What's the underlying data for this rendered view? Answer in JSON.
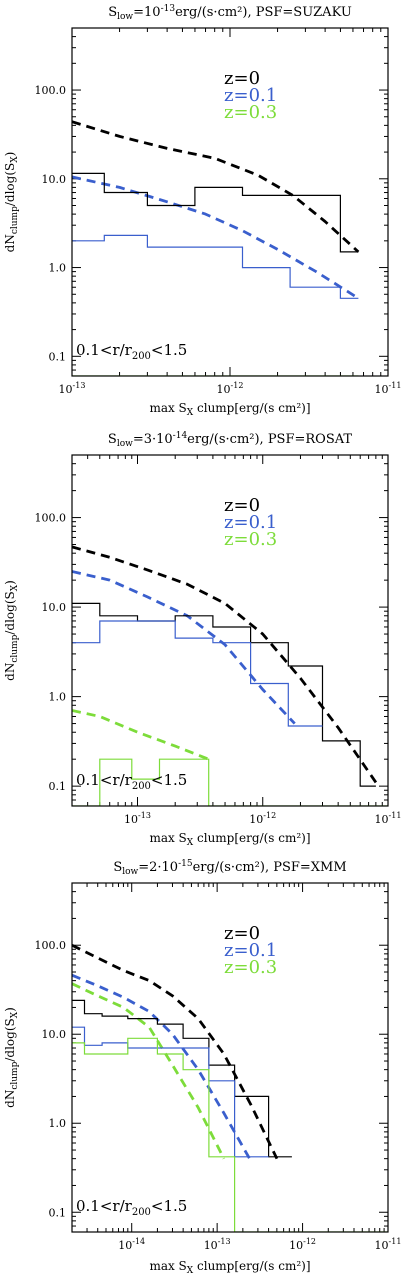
{
  "chart_data": [
    {
      "type": "line",
      "title": "S_low=10^-13 erg/(s·cm²),  PSF=SUZAKU",
      "title_parts": {
        "pre": "S",
        "sub": "low",
        "mid": "=10",
        "sup": "-13",
        "post": "erg/(s·cm²),  PSF=SUZAKU"
      },
      "xlabel": "max S_X clump[erg/(s cm²)]",
      "xlabel_parts": {
        "pre": "max S",
        "sub": "X",
        "post": " clump[erg/(s cm²)]"
      },
      "ylabel": "dN_clump/dlog(S_X)",
      "xscale": "log",
      "yscale": "log",
      "xlim": [
        1e-13,
        1e-11
      ],
      "ylim": [
        0.06,
        500
      ],
      "xtick_labels": [
        {
          "pos": 1e-13,
          "b": "10",
          "e": "-13"
        },
        {
          "pos": 1e-12,
          "b": "10",
          "e": "-12"
        },
        {
          "pos": 1e-11,
          "b": "10",
          "e": "-11"
        }
      ],
      "ytick_labels": [
        {
          "pos": 0.1,
          "label": "0.1"
        },
        {
          "pos": 1,
          "label": "1.0"
        },
        {
          "pos": 10,
          "label": "10.0"
        },
        {
          "pos": 100,
          "label": "100.0"
        }
      ],
      "legend": [
        {
          "label": "z=0",
          "color": "#000000"
        },
        {
          "label": "z=0.1",
          "color": "#3a5fcd"
        },
        {
          "label": "z=0.3",
          "color": "#7ddc3a"
        }
      ],
      "legend_placement": "top-right",
      "annotation": "0.1<r/r_200<1.5",
      "series": [
        {
          "kind": "dashed",
          "color": "#000000",
          "x": [
            1e-13,
            2e-13,
            4e-13,
            8e-13,
            1.5e-12,
            2.5e-12,
            4e-12,
            6.5e-12
          ],
          "y": [
            44,
            30,
            22,
            17,
            11,
            6.5,
            3.3,
            1.5
          ]
        },
        {
          "kind": "dashed",
          "color": "#3a5fcd",
          "x": [
            1e-13,
            2e-13,
            4e-13,
            7e-13,
            1.2e-12,
            2e-12,
            3.5e-12,
            6.5e-12
          ],
          "y": [
            10.5,
            8,
            5.5,
            4,
            2.6,
            1.6,
            0.9,
            0.45
          ]
        },
        {
          "kind": "step",
          "color": "#000000",
          "edges": [
            1e-13,
            1.6e-13,
            3e-13,
            6e-13,
            1.2e-12,
            2.4e-12,
            5e-12,
            6.5e-12
          ],
          "values": [
            11.5,
            7,
            5,
            8,
            6.5,
            6.5,
            1.5
          ]
        },
        {
          "kind": "step",
          "color": "#3a5fcd",
          "edges": [
            1e-13,
            1.6e-13,
            3e-13,
            6e-13,
            1.2e-12,
            2.4e-12,
            5e-12,
            6.5e-12
          ],
          "values": [
            2,
            2.3,
            1.7,
            1.7,
            1.0,
            0.6,
            0.45
          ]
        },
        {
          "kind": "step",
          "color": "#7ddc3a",
          "edges": [
            1e-13,
            6.5e-12
          ],
          "values": [
            0.06
          ]
        }
      ]
    },
    {
      "type": "line",
      "title": "S_low=3·10^-14 erg/(s·cm²),  PSF=ROSAT",
      "title_parts": {
        "pre": "S",
        "sub": "low",
        "mid": "=3·10",
        "sup": "-14",
        "post": "erg/(s·cm²),  PSF=ROSAT"
      },
      "xlabel": "max S_X clump[erg/(s cm²)]",
      "xlabel_parts": {
        "pre": "max S",
        "sub": "X",
        "post": " clump[erg/(s cm²)]"
      },
      "ylabel": "dN_clump/dlog(S_X)",
      "xscale": "log",
      "yscale": "log",
      "xlim": [
        3e-14,
        1e-11
      ],
      "ylim": [
        0.06,
        500
      ],
      "xtick_labels": [
        {
          "pos": 1e-13,
          "b": "10",
          "e": "-13"
        },
        {
          "pos": 1e-12,
          "b": "10",
          "e": "-12"
        },
        {
          "pos": 1e-11,
          "b": "10",
          "e": "-11"
        }
      ],
      "ytick_labels": [
        {
          "pos": 0.1,
          "label": "0.1"
        },
        {
          "pos": 1,
          "label": "1.0"
        },
        {
          "pos": 10,
          "label": "10.0"
        },
        {
          "pos": 100,
          "label": "100.0"
        }
      ],
      "legend": [
        {
          "label": "z=0",
          "color": "#000000"
        },
        {
          "label": "z=0.1",
          "color": "#3a5fcd"
        },
        {
          "label": "z=0.3",
          "color": "#7ddc3a"
        }
      ],
      "legend_placement": "top-right",
      "annotation": "0.1<r/r_200<1.5",
      "series": [
        {
          "kind": "dashed",
          "color": "#000000",
          "x": [
            3e-14,
            6e-14,
            1.2e-13,
            2.5e-13,
            5e-13,
            1e-12,
            2e-12,
            4e-12,
            8e-12
          ],
          "y": [
            47,
            36,
            26,
            18,
            11,
            5,
            1.6,
            0.45,
            0.11
          ]
        },
        {
          "kind": "dashed",
          "color": "#3a5fcd",
          "x": [
            3e-14,
            6e-14,
            1.2e-13,
            2.5e-13,
            5e-13,
            1e-12,
            1.8e-12
          ],
          "y": [
            25,
            20,
            13,
            8,
            3.8,
            1.2,
            0.5
          ]
        },
        {
          "kind": "dashed",
          "color": "#7ddc3a",
          "x": [
            3e-14,
            5e-14,
            1e-13,
            2e-13,
            3.7e-13
          ],
          "y": [
            0.7,
            0.6,
            0.4,
            0.28,
            0.2
          ]
        },
        {
          "kind": "step",
          "color": "#000000",
          "edges": [
            3e-14,
            5e-14,
            1e-13,
            2e-13,
            4e-13,
            8e-13,
            1.6e-12,
            3e-12,
            6e-12,
            8e-12
          ],
          "values": [
            11,
            8,
            7,
            8,
            6,
            4,
            2.2,
            0.32,
            0.1
          ]
        },
        {
          "kind": "step",
          "color": "#3a5fcd",
          "edges": [
            3e-14,
            5e-14,
            1e-13,
            2e-13,
            4e-13,
            8e-13,
            1.6e-12,
            3e-12
          ],
          "values": [
            4,
            7,
            7,
            4.5,
            4,
            1.4,
            0.47
          ]
        },
        {
          "kind": "step",
          "color": "#7ddc3a",
          "edges": [
            3e-14,
            5e-14,
            9e-14,
            1.5e-13,
            2.3e-13,
            3.7e-13,
            1e-11
          ],
          "values": [
            0.06,
            0.2,
            0.12,
            0.2,
            0.2,
            0.06
          ]
        }
      ]
    },
    {
      "type": "line",
      "title": "S_low=2·10^-15 erg/(s·cm²),  PSF=XMM",
      "title_parts": {
        "pre": "S",
        "sub": "low",
        "mid": "=2·10",
        "sup": "-15",
        "post": "erg/(s·cm²),  PSF=XMM"
      },
      "xlabel": "max S_X clump[erg/(s cm²)]",
      "xlabel_parts": {
        "pre": "max S",
        "sub": "X",
        "post": " clump[erg/(s cm²)]"
      },
      "ylabel": "dN_clump/dlog(S_X)",
      "xscale": "log",
      "yscale": "log",
      "xlim": [
        2e-15,
        1e-11
      ],
      "ylim": [
        0.06,
        500
      ],
      "xtick_labels": [
        {
          "pos": 1e-14,
          "b": "10",
          "e": "-14"
        },
        {
          "pos": 1e-13,
          "b": "10",
          "e": "-13"
        },
        {
          "pos": 1e-12,
          "b": "10",
          "e": "-12"
        },
        {
          "pos": 1e-11,
          "b": "10",
          "e": "-11"
        }
      ],
      "ytick_labels": [
        {
          "pos": 0.1,
          "label": "0.1"
        },
        {
          "pos": 1,
          "label": "1.0"
        },
        {
          "pos": 10,
          "label": "10.0"
        },
        {
          "pos": 100,
          "label": "100.0"
        }
      ],
      "legend": [
        {
          "label": "z=0",
          "color": "#000000"
        },
        {
          "label": "z=0.1",
          "color": "#3a5fcd"
        },
        {
          "label": "z=0.3",
          "color": "#7ddc3a"
        }
      ],
      "legend_placement": "top-right",
      "annotation": "0.1<r/r_200<1.5",
      "series": [
        {
          "kind": "dashed",
          "color": "#000000",
          "x": [
            2e-15,
            4e-15,
            8e-15,
            1.6e-14,
            3e-14,
            6e-14,
            1.2e-13,
            2.5e-13,
            5e-13
          ],
          "y": [
            100,
            72,
            52,
            40,
            27,
            15,
            6,
            1.6,
            0.4
          ]
        },
        {
          "kind": "dashed",
          "color": "#3a5fcd",
          "x": [
            2e-15,
            4e-15,
            8e-15,
            1.6e-14,
            3e-14,
            6e-14,
            1.2e-13,
            2.4e-13
          ],
          "y": [
            46,
            35,
            26,
            18,
            10,
            4,
            1.3,
            0.4
          ]
        },
        {
          "kind": "dashed",
          "color": "#7ddc3a",
          "x": [
            2e-15,
            4e-15,
            8e-15,
            1.6e-14,
            3e-14,
            6e-14,
            1.2e-13
          ],
          "y": [
            37,
            27,
            20,
            12,
            4.5,
            1.5,
            0.4
          ]
        },
        {
          "kind": "step",
          "color": "#000000",
          "edges": [
            2e-15,
            2.8e-15,
            4.5e-15,
            9e-15,
            2e-14,
            4e-14,
            8e-14,
            1.6e-13,
            4e-13,
            7.5e-13
          ],
          "values": [
            24,
            17,
            16,
            15,
            13,
            9,
            4.5,
            2,
            0.42
          ]
        },
        {
          "kind": "step",
          "color": "#3a5fcd",
          "edges": [
            2e-15,
            2.8e-15,
            4.5e-15,
            9e-15,
            2e-14,
            4e-14,
            8e-14,
            1.6e-13,
            4e-13
          ],
          "values": [
            12,
            7.5,
            8,
            7,
            7,
            7,
            3,
            0.42
          ]
        },
        {
          "kind": "step",
          "color": "#7ddc3a",
          "edges": [
            2e-15,
            2.8e-15,
            4.5e-15,
            9e-15,
            2e-14,
            4e-14,
            8e-14,
            1.6e-13,
            1e-11
          ],
          "values": [
            8,
            6,
            6,
            9,
            6,
            4,
            0.42,
            0.06
          ]
        }
      ]
    }
  ]
}
